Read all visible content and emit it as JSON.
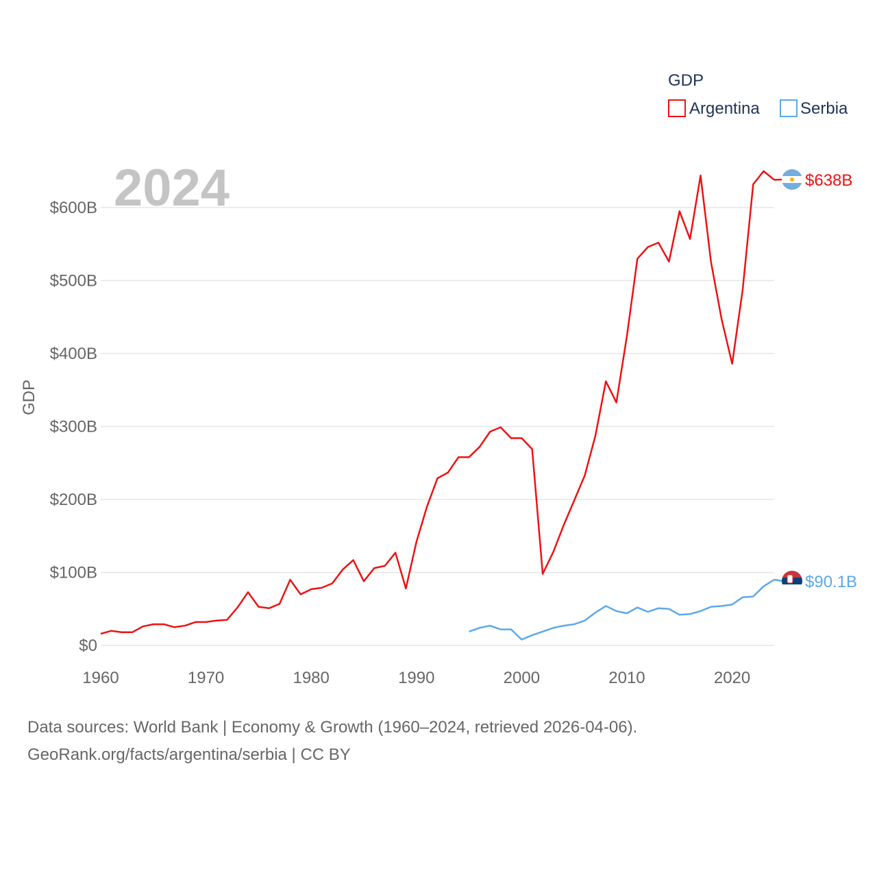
{
  "chart_data": {
    "type": "line",
    "year_label": "2024",
    "ylabel": "GDP",
    "xlim": [
      1960,
      2024
    ],
    "ylim": [
      0,
      650
    ],
    "x_ticks": [
      1960,
      1970,
      1980,
      1990,
      2000,
      2010,
      2020
    ],
    "y_ticks": [
      {
        "value": 0,
        "label": "$0"
      },
      {
        "value": 100,
        "label": "$100B"
      },
      {
        "value": 200,
        "label": "$200B"
      },
      {
        "value": 300,
        "label": "$300B"
      },
      {
        "value": 400,
        "label": "$400B"
      },
      {
        "value": 500,
        "label": "$500B"
      },
      {
        "value": 600,
        "label": "$600B"
      }
    ],
    "legend": {
      "title": "GDP",
      "position": "top-right"
    },
    "series": [
      {
        "name": "Argentina",
        "color": "#ee1111",
        "end_label": "$638B",
        "flag": "argentina-flag-icon",
        "x": [
          1960,
          1961,
          1962,
          1963,
          1964,
          1965,
          1966,
          1967,
          1968,
          1969,
          1970,
          1971,
          1972,
          1973,
          1974,
          1975,
          1976,
          1977,
          1978,
          1979,
          1980,
          1981,
          1982,
          1983,
          1984,
          1985,
          1986,
          1987,
          1988,
          1989,
          1990,
          1991,
          1992,
          1993,
          1994,
          1995,
          1996,
          1997,
          1998,
          1999,
          2000,
          2001,
          2002,
          2003,
          2004,
          2005,
          2006,
          2007,
          2008,
          2009,
          2010,
          2011,
          2012,
          2013,
          2014,
          2015,
          2016,
          2017,
          2018,
          2019,
          2020,
          2021,
          2022,
          2023,
          2024
        ],
        "values": [
          16,
          20,
          18,
          18,
          26,
          29,
          29,
          25,
          27,
          32,
          32,
          34,
          35,
          52,
          73,
          53,
          51,
          57,
          90,
          70,
          77,
          79,
          85,
          104,
          117,
          88,
          106,
          109,
          127,
          78,
          142,
          190,
          229,
          237,
          258,
          258,
          272,
          293,
          299,
          284,
          284,
          269,
          98,
          128,
          165,
          199,
          233,
          287,
          362,
          333,
          424,
          530,
          546,
          552,
          526,
          595,
          557,
          644,
          525,
          447,
          386,
          487,
          632,
          650,
          638
        ]
      },
      {
        "name": "Serbia",
        "color": "#5ca8e8",
        "end_label": "$90.1B",
        "flag": "serbia-flag-icon",
        "x": [
          1995,
          1996,
          1997,
          1998,
          1999,
          2000,
          2001,
          2002,
          2003,
          2004,
          2005,
          2006,
          2007,
          2008,
          2009,
          2010,
          2011,
          2012,
          2013,
          2014,
          2015,
          2016,
          2017,
          2018,
          2019,
          2020,
          2021,
          2022,
          2023,
          2024
        ],
        "values": [
          19,
          24,
          27,
          22,
          22,
          8,
          14,
          19,
          24,
          27,
          29,
          34,
          45,
          54,
          47,
          44,
          52,
          46,
          51,
          50,
          42,
          43,
          47,
          53,
          54,
          56,
          66,
          67,
          81,
          90.1
        ]
      }
    ]
  },
  "source": {
    "line1": "Data sources: World Bank | Economy & Growth (1960–2024, retrieved 2026-04-06).",
    "line2": "GeoRank.org/facts/argentina/serbia | CC BY"
  }
}
